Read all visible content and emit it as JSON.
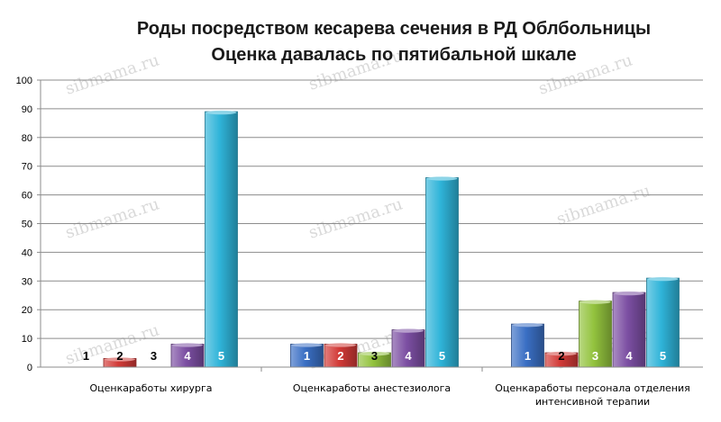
{
  "chart_data": {
    "type": "bar",
    "title_lines": [
      "Роды посредством кесарева сечения в РД Облбольницы",
      "Оценка давалась по пятибальной шкале"
    ],
    "categories": [
      [
        "Оценкаработы хирурга"
      ],
      [
        "Оценкаработы анестезиолога"
      ],
      [
        "Оценкаработы персонала отделения",
        "интенсивной терапии"
      ]
    ],
    "series": [
      {
        "name": "1",
        "color": "#3a6fc4",
        "values": [
          0,
          8,
          15
        ]
      },
      {
        "name": "2",
        "color": "#d23a37",
        "values": [
          3,
          8,
          5
        ]
      },
      {
        "name": "3",
        "color": "#93c33e",
        "values": [
          0,
          5,
          23
        ]
      },
      {
        "name": "4",
        "color": "#7c4fa3",
        "values": [
          8,
          13,
          26
        ]
      },
      {
        "name": "5",
        "color": "#2fb4d9",
        "values": [
          89,
          66,
          31
        ]
      }
    ],
    "ylim": [
      0,
      100
    ],
    "yticks": [
      0,
      10,
      20,
      30,
      40,
      50,
      60,
      70,
      80,
      90,
      100
    ],
    "grid": true,
    "watermark": "sibmama.ru"
  }
}
